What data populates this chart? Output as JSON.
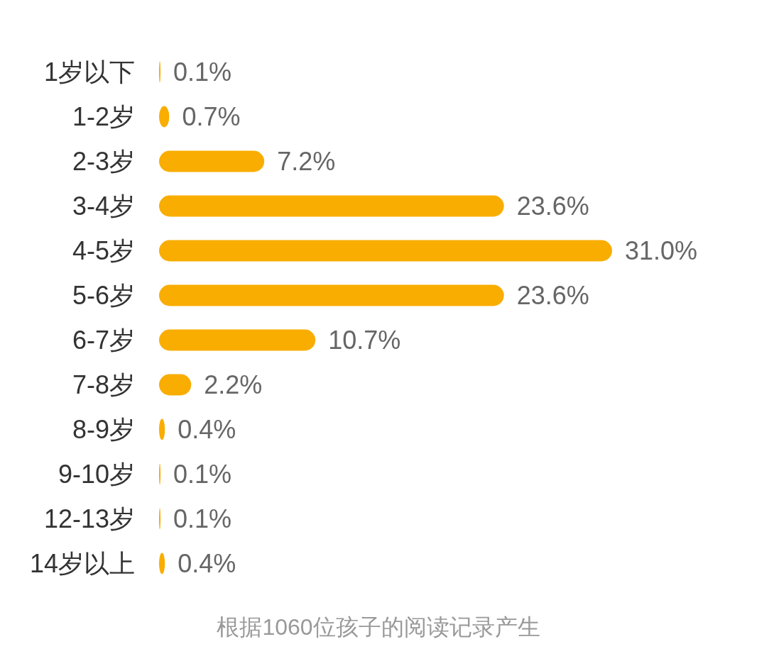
{
  "chart_data": {
    "type": "bar",
    "orientation": "horizontal",
    "categories": [
      "1岁以下",
      "1-2岁",
      "2-3岁",
      "3-4岁",
      "4-5岁",
      "5-6岁",
      "6-7岁",
      "7-8岁",
      "8-9岁",
      "9-10岁",
      "12-13岁",
      "14岁以上"
    ],
    "values": [
      0.1,
      0.7,
      7.2,
      23.6,
      31.0,
      23.6,
      10.7,
      2.2,
      0.4,
      0.1,
      0.1,
      0.4
    ],
    "value_labels": [
      "0.1%",
      "0.7%",
      "7.2%",
      "23.6%",
      "31.0%",
      "23.6%",
      "10.7%",
      "2.2%",
      "0.4%",
      "0.1%",
      "0.1%",
      "0.4%"
    ],
    "color": "#f9ad00",
    "annotations": [
      "根据1060位孩子的阅读记录产生"
    ]
  }
}
